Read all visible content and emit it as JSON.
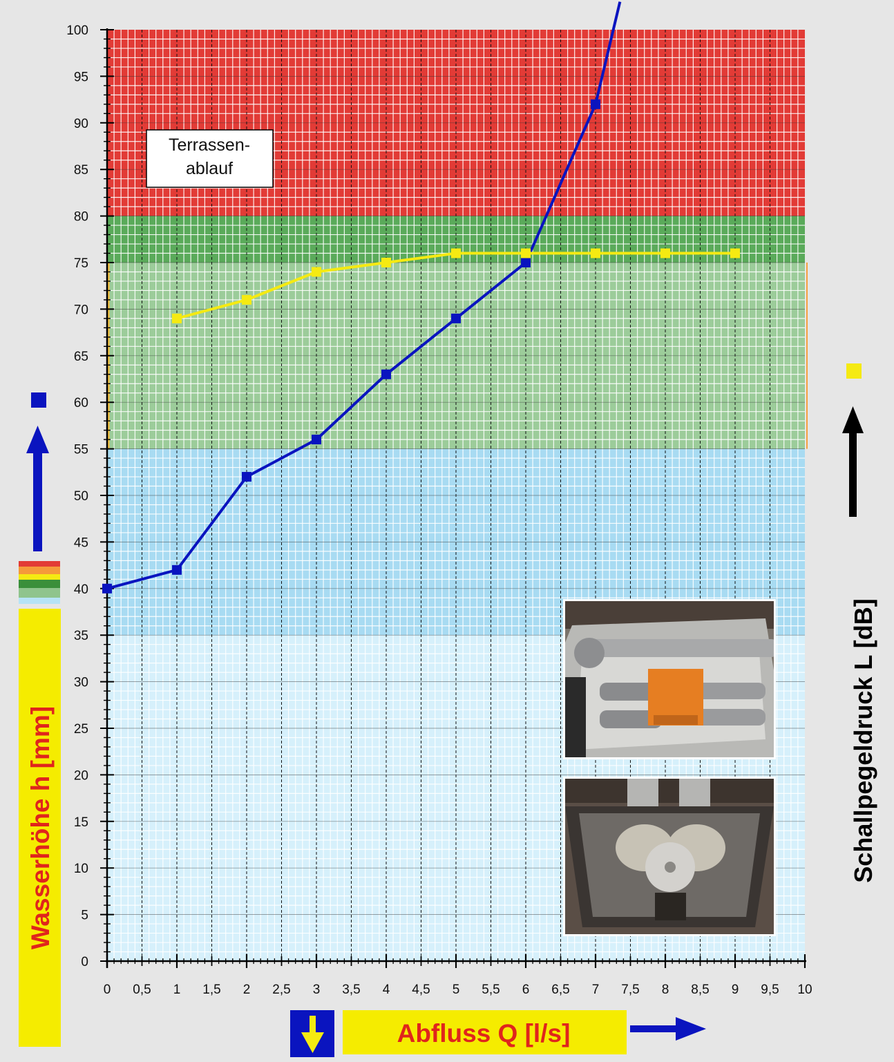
{
  "chart_data": {
    "type": "line",
    "annotation_box": {
      "line1": "Terrassen-",
      "line2": "ablauf"
    },
    "xlabel": "Abfluss Q [l/s]",
    "ylabel": "Wasserhöhe h [mm]",
    "ylabel_right": "Schallpegeldruck L [dB]",
    "x_tick_labels": [
      "0",
      "0,5",
      "1",
      "1,5",
      "2",
      "2,5",
      "3",
      "3,5",
      "4",
      "4,5",
      "5",
      "5,5",
      "6",
      "6,5",
      "7",
      "7,5",
      "8",
      "8,5",
      "9",
      "9,5",
      "10"
    ],
    "y_tick_labels": [
      "0",
      "5",
      "10",
      "15",
      "20",
      "25",
      "30",
      "35",
      "40",
      "45",
      "50",
      "55",
      "60",
      "65",
      "70",
      "75",
      "80",
      "85",
      "90",
      "95",
      "100"
    ],
    "xlim": [
      0,
      10
    ],
    "ylim": [
      0,
      100
    ],
    "grid": true,
    "zones": [
      {
        "name": "",
        "from": 80,
        "to": 100,
        "color": "#e23b36"
      },
      {
        "name": "",
        "from": 75,
        "to": 80,
        "color": "#5aaa5a"
      },
      {
        "name": "",
        "from": 55,
        "to": 75,
        "color": "#9ccc9a"
      },
      {
        "name": "",
        "from": 35,
        "to": 55,
        "color": "#a8dbf2"
      },
      {
        "name": "",
        "from": 0,
        "to": 35,
        "color": "#d6f0fb"
      }
    ],
    "series": [
      {
        "name": "",
        "color": "#0a14bf",
        "x": [
          0,
          1,
          2,
          3,
          4,
          5,
          6,
          7,
          7.35
        ],
        "y": [
          40,
          42,
          52,
          56,
          63,
          69,
          75,
          92,
          103
        ]
      },
      {
        "name": "",
        "color": "#f5ea12",
        "x": [
          1,
          2,
          3,
          4,
          5,
          6,
          7,
          8,
          9
        ],
        "y": [
          69,
          71,
          74,
          75,
          76,
          76,
          76,
          76,
          76
        ]
      }
    ]
  },
  "colors": {
    "blue_marker": "#0a14bf",
    "yellow_marker": "#f5ea12",
    "label_red": "#e0251c",
    "label_bg_yellow": "#f5ec00"
  },
  "icons": {
    "blue_square": "blue-square-icon",
    "yellow_square": "yellow-square-icon",
    "arrow_up": "arrow-up-icon",
    "arrow_right": "arrow-right-icon",
    "arrow_down": "arrow-down-icon"
  },
  "photos": [
    {
      "name": "drain-box-top-photo"
    },
    {
      "name": "drain-box-bottom-photo"
    }
  ]
}
